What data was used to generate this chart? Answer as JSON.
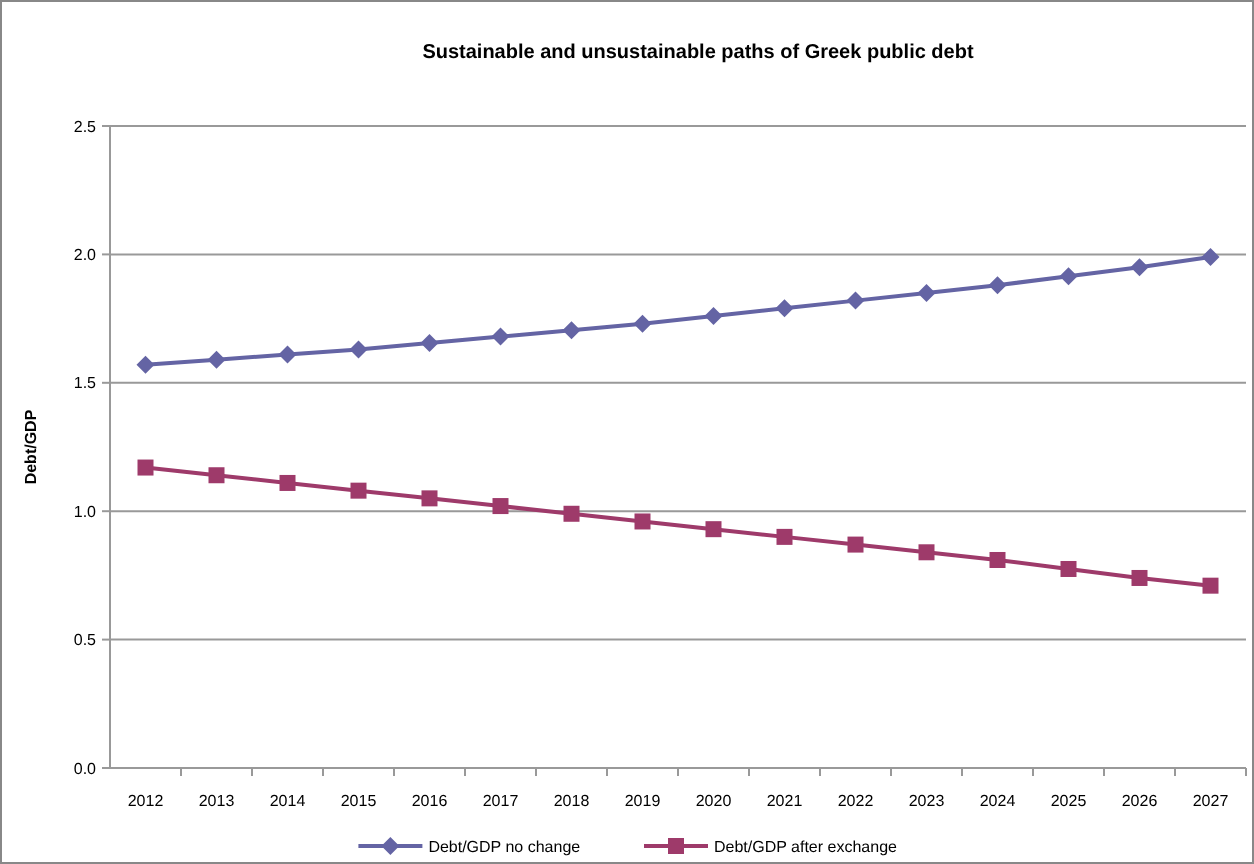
{
  "chart_data": {
    "type": "line",
    "title": "Sustainable and unsustainable paths of Greek public debt",
    "ylabel": "Debt/GDP",
    "categories": [
      "2012",
      "2013",
      "2014",
      "2015",
      "2016",
      "2017",
      "2018",
      "2019",
      "2020",
      "2021",
      "2022",
      "2023",
      "2024",
      "2025",
      "2026",
      "2027"
    ],
    "series": [
      {
        "name": "Debt/GDP no change",
        "color": "#6464a4",
        "marker": "diamond",
        "values": [
          1.57,
          1.59,
          1.61,
          1.63,
          1.655,
          1.68,
          1.705,
          1.73,
          1.76,
          1.79,
          1.82,
          1.85,
          1.88,
          1.915,
          1.95,
          1.99
        ]
      },
      {
        "name": "Debt/GDP after exchange",
        "color": "#9e3a6a",
        "marker": "square",
        "values": [
          1.17,
          1.14,
          1.11,
          1.08,
          1.05,
          1.02,
          0.99,
          0.96,
          0.93,
          0.9,
          0.87,
          0.84,
          0.81,
          0.775,
          0.74,
          0.71
        ]
      }
    ],
    "ylim": [
      0,
      2.5
    ],
    "yticks": [
      {
        "value": 0,
        "label": "0.0"
      },
      {
        "value": 0.5,
        "label": "0.5"
      },
      {
        "value": 1,
        "label": "1.0"
      },
      {
        "value": 1.5,
        "label": "1.5"
      },
      {
        "value": 2,
        "label": "2.0"
      },
      {
        "value": 2.5,
        "label": "2.5"
      }
    ],
    "grid": "y",
    "legend": "bottom"
  }
}
